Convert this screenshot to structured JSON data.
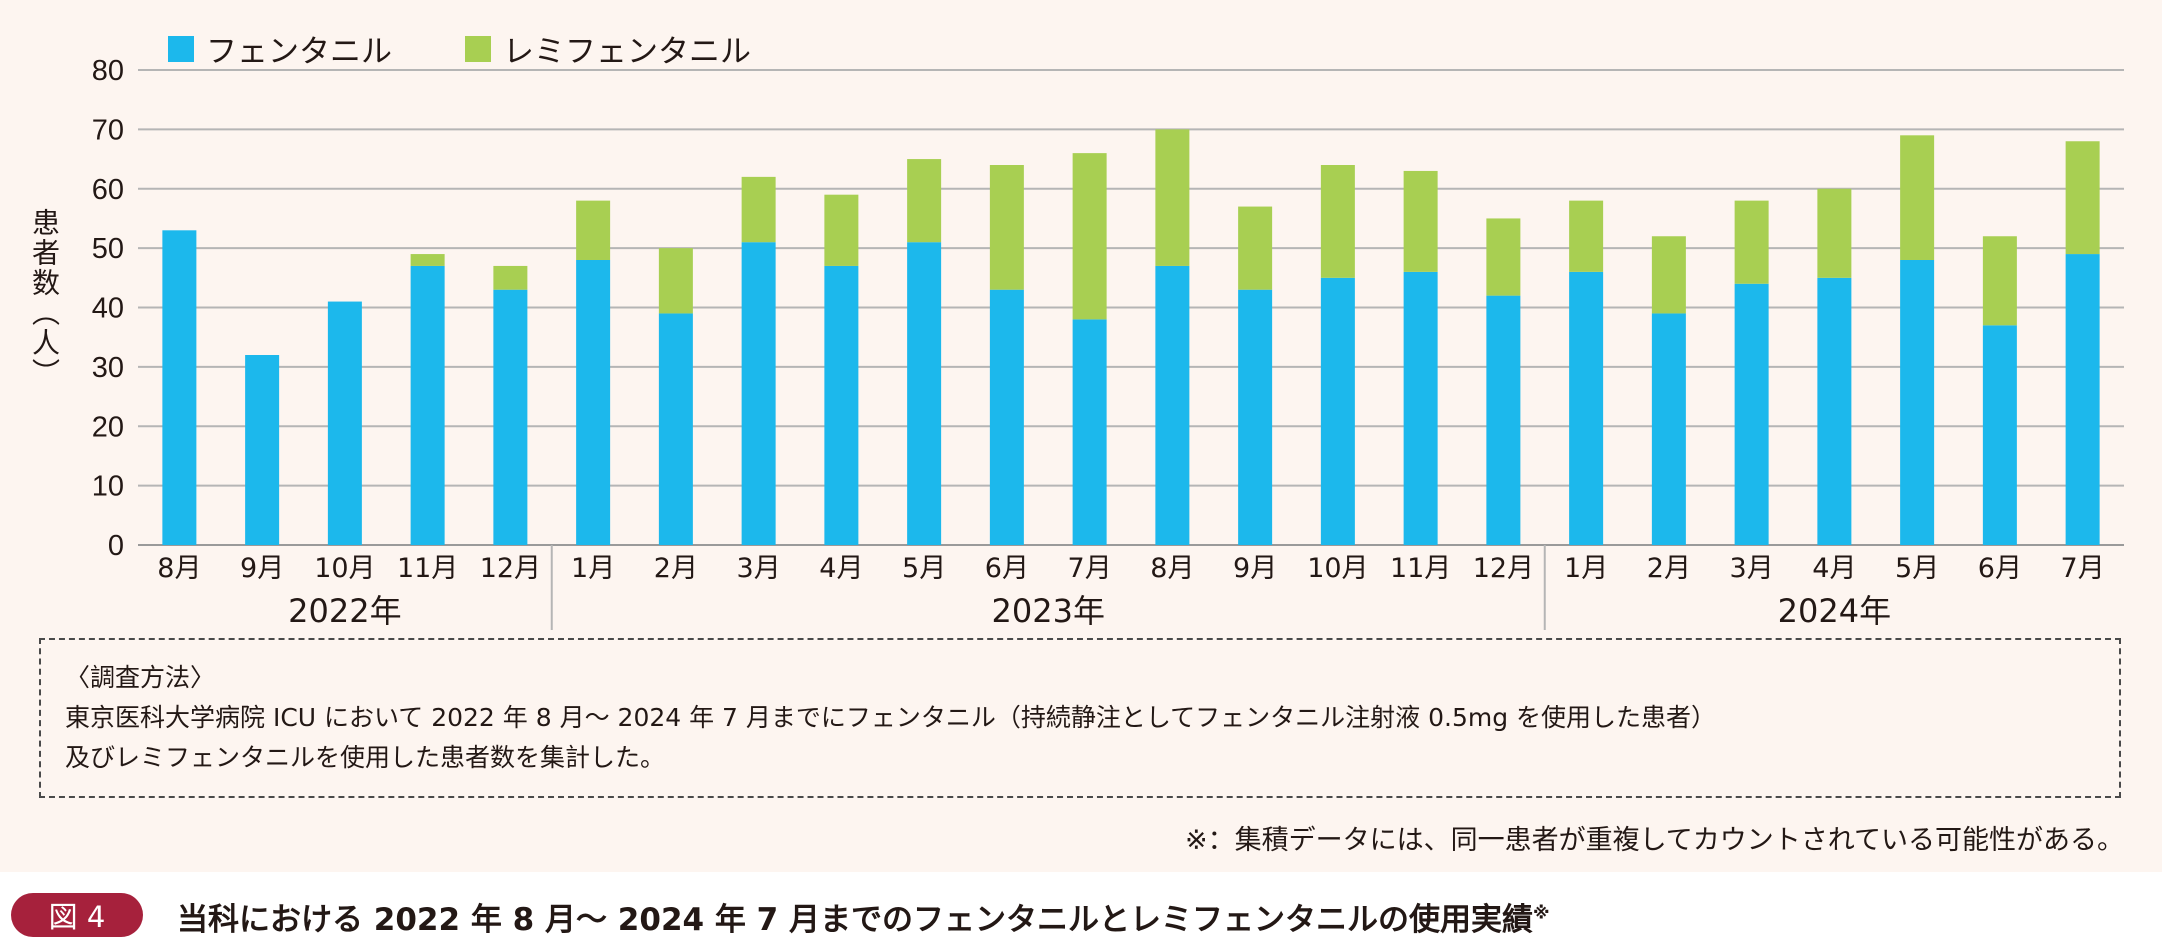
{
  "chart_data": {
    "type": "bar",
    "stacked": true,
    "ylabel": "患者数（人）",
    "ylim": [
      0,
      80
    ],
    "yticks": [
      0,
      10,
      20,
      30,
      40,
      50,
      60,
      70,
      80
    ],
    "grid": true,
    "legend_position": "top-left",
    "categories": [
      "8月",
      "9月",
      "10月",
      "11月",
      "12月",
      "1月",
      "2月",
      "3月",
      "4月",
      "5月",
      "6月",
      "7月",
      "8月",
      "9月",
      "10月",
      "11月",
      "12月",
      "1月",
      "2月",
      "3月",
      "4月",
      "5月",
      "6月",
      "7月"
    ],
    "year_groups": [
      {
        "label": "2022年",
        "count": 5
      },
      {
        "label": "2023年",
        "count": 12
      },
      {
        "label": "2024年",
        "count": 7
      }
    ],
    "series": [
      {
        "name": "フェンタニル",
        "color": "#1cb8ec",
        "values": [
          53,
          32,
          41,
          47,
          43,
          48,
          39,
          51,
          47,
          51,
          43,
          38,
          47,
          43,
          45,
          46,
          42,
          46,
          39,
          44,
          45,
          48,
          37,
          49
        ]
      },
      {
        "name": "レミフェンタニル",
        "color": "#a8cf52",
        "values": [
          0,
          0,
          0,
          2,
          4,
          10,
          11,
          11,
          12,
          14,
          21,
          28,
          23,
          14,
          19,
          17,
          13,
          12,
          13,
          14,
          15,
          21,
          15,
          19
        ]
      }
    ]
  },
  "method": {
    "heading": "〈調査方法〉",
    "line1": "東京医科大学病院 ICU において 2022 年 8 月～ 2024 年 7 月までにフェンタニル（持続静注としてフェンタニル注射液 0.5mg を使用した患者）",
    "line2": "及びレミフェンタニルを使用した患者数を集計した。"
  },
  "note": "※：集積データには、同一患者が重複してカウントされている可能性がある。",
  "figure": {
    "badge": "図 4",
    "caption": "当科における 2022 年 8 月～ 2024 年 7 月までのフェンタニルとレミフェンタニルの使用実績",
    "caption_mark": "※"
  }
}
